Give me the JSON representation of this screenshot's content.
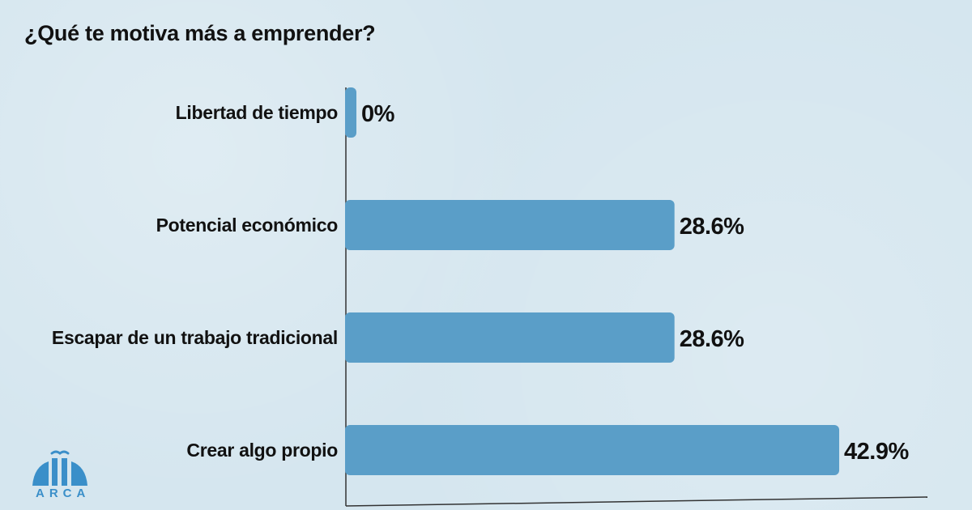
{
  "title": "¿Qué te motiva más a emprender?",
  "logo_text": "ARCA",
  "colors": {
    "bar": "#5a9ec8",
    "axis": "#333333",
    "text": "#111111",
    "logo": "#3a8fc9"
  },
  "chart_data": {
    "type": "bar",
    "orientation": "horizontal",
    "title": "¿Qué te motiva más a emprender?",
    "xlabel": "",
    "ylabel": "",
    "xlim": [
      0,
      50
    ],
    "grid": false,
    "categories": [
      "Libertad de tiempo",
      "Potencial económico",
      "Escapar de un trabajo tradicional",
      "Crear algo propio"
    ],
    "values": [
      0,
      28.6,
      28.6,
      42.9
    ],
    "value_labels": [
      "0%",
      "28.6%",
      "28.6%",
      "42.9%"
    ]
  }
}
